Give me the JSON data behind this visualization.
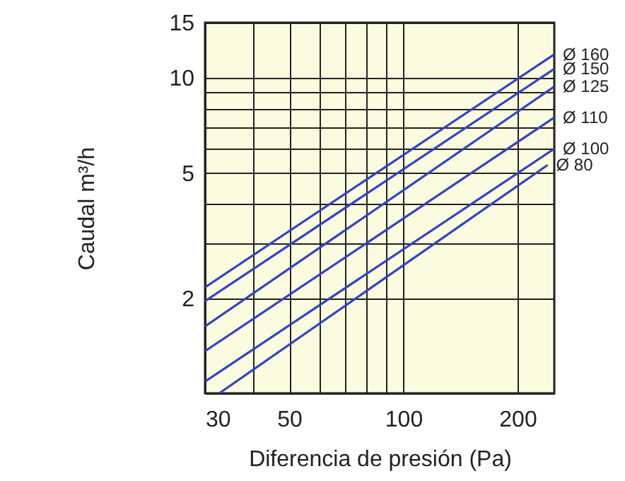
{
  "chart_data": {
    "type": "line",
    "xlabel": "Diferencia de presión (Pa)",
    "ylabel": "Caudal m³/h",
    "log": "xy",
    "grid": true,
    "xlim": [
      30,
      250
    ],
    "ylim": [
      1,
      15
    ],
    "xticks": [
      30,
      {
        "value": 40,
        "label": null
      },
      50,
      {
        "value": 60,
        "label": null
      },
      {
        "value": 70,
        "label": null
      },
      {
        "value": 80,
        "label": null
      },
      {
        "value": 90,
        "label": null
      },
      100,
      200
    ],
    "yticks": [
      {
        "value": 1,
        "label": null
      },
      2,
      {
        "value": 3,
        "label": null
      },
      {
        "value": 4,
        "label": null
      },
      5,
      {
        "value": 6,
        "label": null
      },
      {
        "value": 7,
        "label": null
      },
      {
        "value": 8,
        "label": null
      },
      {
        "value": 9,
        "label": null
      },
      10,
      15
    ],
    "x": [
      30,
      250
    ],
    "series": [
      {
        "name": "Ø 160",
        "color": "#3344bb",
        "values": [
          2.17,
          11.9
        ]
      },
      {
        "name": "Ø 150",
        "color": "#3344bb",
        "values": [
          1.96,
          10.7
        ]
      },
      {
        "name": "Ø 125",
        "color": "#3344bb",
        "values": [
          1.63,
          9.4
        ]
      },
      {
        "name": "Ø 110",
        "color": "#3344bb",
        "values": [
          1.36,
          7.5
        ]
      },
      {
        "name": "Ø 100",
        "color": "#3344bb",
        "values": [
          1.09,
          5.97
        ]
      },
      {
        "name": "Ø 80",
        "color": "#3344bb",
        "x": [
          32.7,
          240
        ],
        "values": [
          1.0,
          5.3
        ]
      }
    ]
  }
}
